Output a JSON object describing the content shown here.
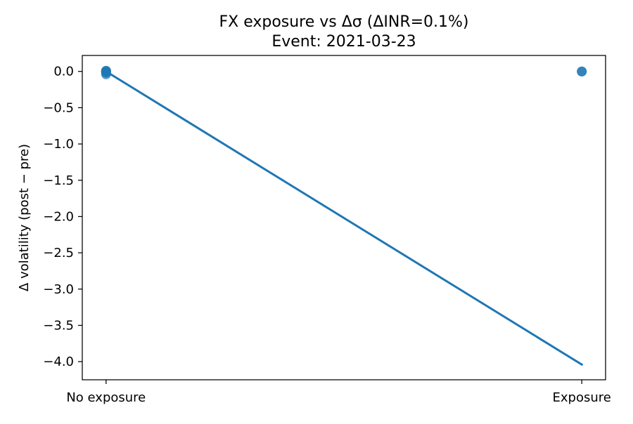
{
  "chart_data": {
    "type": "scatter",
    "title": "FX exposure vs Δσ  (ΔINR=0.1%)",
    "subtitle": "Event: 2021-03-23",
    "xlabel": "",
    "ylabel": "Δ volatility (post − pre)",
    "categories": [
      "No exposure",
      "Exposure"
    ],
    "x_values": [
      0,
      1
    ],
    "xlim": [
      -0.05,
      1.05
    ],
    "ylim": [
      -4.25,
      0.22
    ],
    "yticks": [
      0.0,
      -0.5,
      -1.0,
      -1.5,
      -2.0,
      -2.5,
      -3.0,
      -3.5,
      -4.0
    ],
    "ytick_labels": [
      "0.0",
      "−0.5",
      "−1.0",
      "−1.5",
      "−2.0",
      "−2.5",
      "−3.0",
      "−3.5",
      "−4.0"
    ],
    "grid": false,
    "points": [
      {
        "x": 0,
        "y": 0.01
      },
      {
        "x": 0,
        "y": 0.005
      },
      {
        "x": 0,
        "y": 0.0
      },
      {
        "x": 0,
        "y": -0.005
      },
      {
        "x": 0,
        "y": -0.01
      },
      {
        "x": 0,
        "y": -0.02
      },
      {
        "x": 0,
        "y": -0.04
      },
      {
        "x": 1,
        "y": 0.0
      },
      {
        "x": 1,
        "y": -0.002
      }
    ],
    "fit_line": {
      "x": [
        0,
        1
      ],
      "y": [
        0.0,
        -4.04
      ]
    },
    "colors": {
      "points": "#1f77b4",
      "line": "#1f77b4",
      "axes": "#000000"
    }
  }
}
